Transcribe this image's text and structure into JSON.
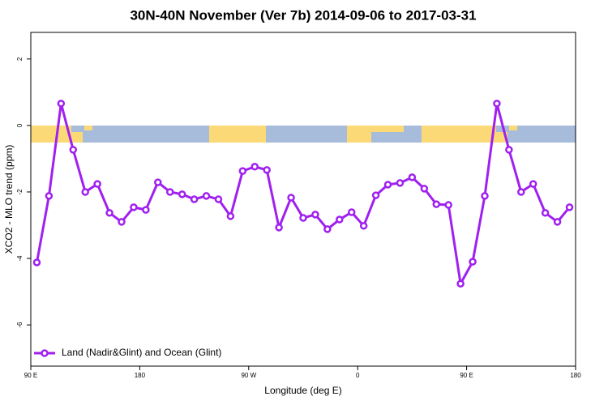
{
  "chart_data": {
    "type": "line",
    "title": "30N-40N November (Ver 7b)   2014-09-06 to 2017-03-31",
    "x_label": "Longitude (deg E)",
    "y_label": "XCO2 - MLO trend (ppm)",
    "x": [
      95,
      105,
      115,
      125,
      135,
      145,
      155,
      165,
      175,
      185,
      195,
      205,
      215,
      225,
      235,
      245,
      255,
      265,
      275,
      285,
      295,
      305,
      315,
      325,
      335,
      345,
      355,
      365,
      375,
      385,
      395,
      405,
      415,
      425,
      435,
      445,
      455,
      465,
      475,
      485,
      495,
      505,
      515,
      525,
      535
    ],
    "series": [
      {
        "name": "Land (Nadir&Glint) and Ocean (Glint)",
        "color": "#a020f0",
        "values": [
          -4.12,
          -2.12,
          0.66,
          -0.73,
          -2.0,
          -1.76,
          -2.63,
          -2.9,
          -2.46,
          -2.54,
          -1.71,
          -2.0,
          -2.07,
          -2.22,
          -2.12,
          -2.22,
          -2.73,
          -1.37,
          -1.24,
          -1.34,
          -3.07,
          -2.17,
          -2.78,
          -2.68,
          -3.12,
          -2.83,
          -2.61,
          -3.02,
          -2.1,
          -1.78,
          -1.73,
          -1.56,
          -1.9,
          -2.37,
          -2.39,
          -4.76,
          -4.1,
          -2.12,
          0.66,
          -0.73,
          -2.0,
          -1.76,
          -2.63,
          -2.9,
          -2.46
        ]
      }
    ],
    "xlim": [
      90,
      540
    ],
    "xticks": [
      {
        "value": 90,
        "label": "90 E"
      },
      {
        "value": 180,
        "label": "180"
      },
      {
        "value": 270,
        "label": "90 W"
      },
      {
        "value": 360,
        "label": "0"
      },
      {
        "value": 450,
        "label": "90 E"
      },
      {
        "value": 540,
        "label": "180"
      }
    ],
    "ylim": [
      -7.24,
      2.8
    ],
    "yticks": [
      -6,
      -4,
      -2,
      0,
      2
    ],
    "legend": "bottom-left"
  }
}
